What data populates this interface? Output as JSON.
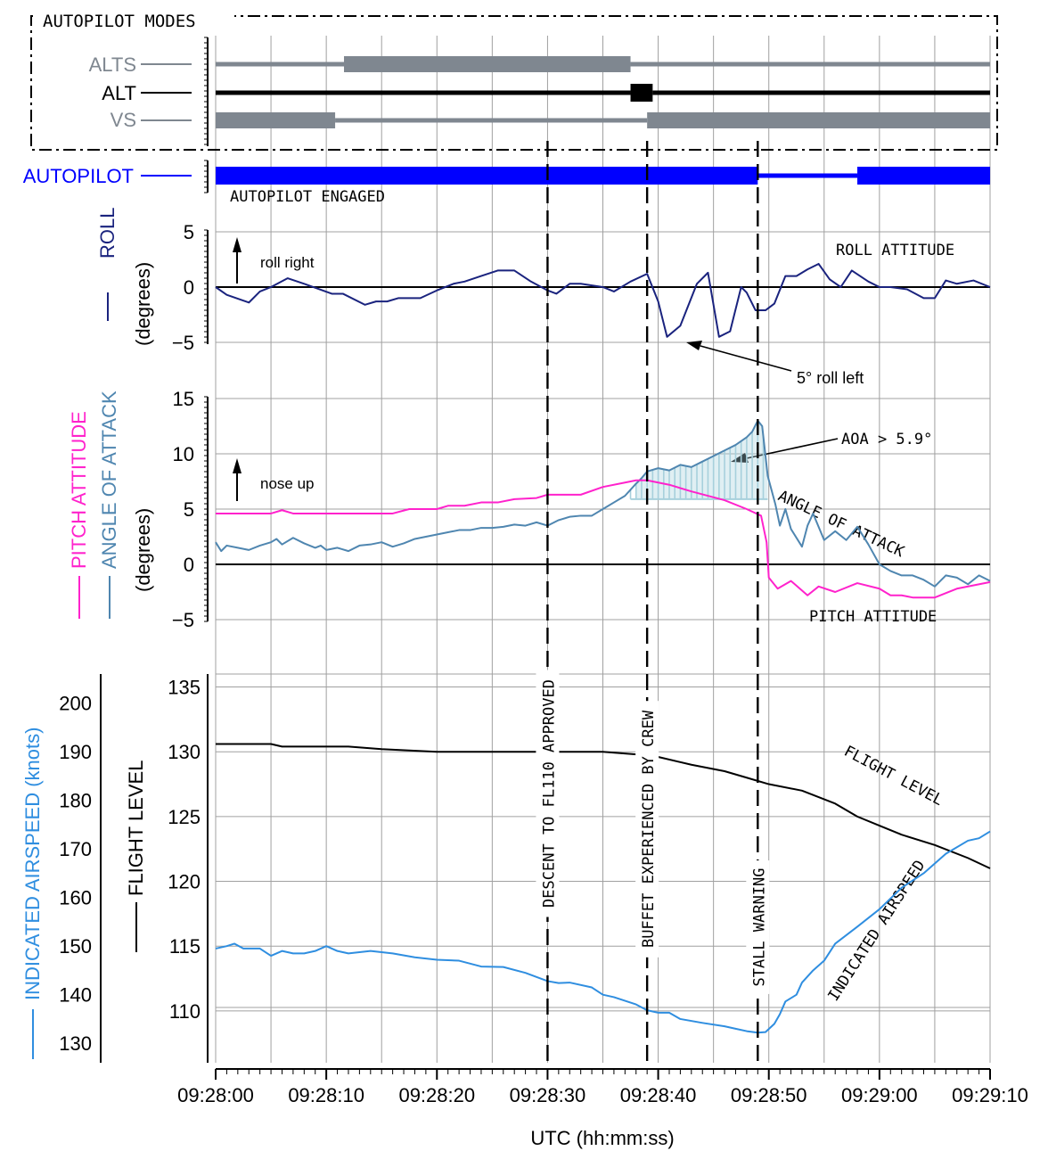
{
  "colors": {
    "modes": "#7f8790",
    "alt": "#000000",
    "autopilot": "#0000ff",
    "roll": "#1a237e",
    "pitch": "#ff22cc",
    "aoa": "#4f86b0",
    "aoa_fill": "#a7d0dc",
    "ias": "#2f8ee0",
    "fl": "#000000",
    "grid": "#a0a0a0"
  },
  "labels": {
    "modes_box": "AUTOPILOT MODES",
    "alts": "ALTS",
    "alt": "ALT",
    "vs": "VS",
    "autopilot": "AUTOPILOT",
    "autopilot_engaged": "AUTOPILOT ENGAGED",
    "roll_axis": "ROLL",
    "roll_unit": "(degrees)",
    "roll_right": "roll right",
    "roll_attitude": "ROLL ATTITUDE",
    "roll_annotation": "5° roll left",
    "pitch_axis": "PITCH ATTITUDE",
    "aoa_axis": "ANGLE OF ATTACK",
    "pitch_unit": "(degrees)",
    "nose_up": "nose up",
    "aoa_threshold": "AOA > 5.9°",
    "aoa_curve": "ANGLE OF ATTACK",
    "pitch_curve": "PITCH ATTITUDE",
    "ias_axis": "INDICATED AIRSPEED (knots)",
    "fl_axis": "FLIGHT LEVEL",
    "fl_curve": "FLIGHT LEVEL",
    "ias_curve": "INDICATED AIRSPEED",
    "event_descent": "DESCENT TO FL110 APPROVED",
    "event_buffet": "BUFFET EXPERIENCED BY CREW",
    "event_stall": "STALL WARNING",
    "x_axis": "UTC (hh:mm:ss)"
  },
  "chart_data": {
    "type": "line",
    "x_unit": "seconds after 09:28:00 UTC",
    "x_ticks": [
      "09:28:00",
      "09:28:10",
      "09:28:20",
      "09:28:30",
      "09:28:40",
      "09:28:50",
      "09:29:00",
      "09:29:10"
    ],
    "xlim": [
      0,
      70
    ],
    "events": [
      {
        "t": 30,
        "label": "DESCENT TO FL110 APPROVED"
      },
      {
        "t": 39,
        "label": "BUFFET EXPERIENCED BY CREW"
      },
      {
        "t": 49,
        "label": "STALL WARNING"
      }
    ],
    "discretes": {
      "ALTS": [
        [
          0,
          11.6,
          "off"
        ],
        [
          11.6,
          37.5,
          "on"
        ],
        [
          37.5,
          70,
          "off"
        ]
      ],
      "ALT": [
        [
          0,
          37.5,
          "off"
        ],
        [
          37.5,
          39.5,
          "on"
        ],
        [
          39.5,
          70,
          "off"
        ]
      ],
      "VS": [
        [
          0,
          10.8,
          "on"
        ],
        [
          10.8,
          39,
          "off"
        ],
        [
          39,
          70,
          "on"
        ]
      ],
      "AUTOPILOT": [
        [
          0,
          49,
          "on"
        ],
        [
          49,
          58,
          "off"
        ],
        [
          58,
          70,
          "on"
        ]
      ]
    },
    "roll": {
      "ylim": [
        -5,
        5
      ],
      "yticks": [
        -5,
        0,
        5
      ],
      "points": [
        [
          0,
          0
        ],
        [
          1,
          -0.7
        ],
        [
          3,
          -1.4
        ],
        [
          4,
          -0.4
        ],
        [
          5,
          0
        ],
        [
          6.5,
          0.8
        ],
        [
          8,
          0.3
        ],
        [
          10.5,
          -0.6
        ],
        [
          11.5,
          -0.6
        ],
        [
          13.5,
          -1.6
        ],
        [
          14.5,
          -1.3
        ],
        [
          15.5,
          -1.3
        ],
        [
          16.5,
          -1
        ],
        [
          18.5,
          -1
        ],
        [
          20,
          -0.3
        ],
        [
          21.5,
          0.3
        ],
        [
          22.5,
          0.5
        ],
        [
          24,
          1
        ],
        [
          25.5,
          1.5
        ],
        [
          27,
          1.5
        ],
        [
          28.5,
          0.5
        ],
        [
          30,
          -0.3
        ],
        [
          30.8,
          -0.6
        ],
        [
          32,
          0.3
        ],
        [
          33,
          0.3
        ],
        [
          35,
          0
        ],
        [
          36,
          -0.4
        ],
        [
          37.5,
          0.5
        ],
        [
          39,
          1.2
        ],
        [
          40,
          -1.3
        ],
        [
          40.8,
          -4.5
        ],
        [
          42,
          -3.5
        ],
        [
          43.5,
          0.3
        ],
        [
          44.5,
          1.3
        ],
        [
          45.5,
          -4.5
        ],
        [
          46.5,
          -4
        ],
        [
          47.5,
          0
        ],
        [
          48,
          -0.5
        ],
        [
          48.8,
          -2.1
        ],
        [
          49.7,
          -2.1
        ],
        [
          50.5,
          -1.5
        ],
        [
          51.5,
          1
        ],
        [
          52.5,
          1
        ],
        [
          53.5,
          1.6
        ],
        [
          54.5,
          2.1
        ],
        [
          55.5,
          0.7
        ],
        [
          56.5,
          0
        ],
        [
          57.5,
          1.5
        ],
        [
          59,
          0.5
        ],
        [
          60,
          0
        ],
        [
          61,
          0
        ],
        [
          62.5,
          -0.2
        ],
        [
          64,
          -1
        ],
        [
          65,
          -1
        ],
        [
          66,
          0.6
        ],
        [
          67,
          0.3
        ],
        [
          68.5,
          0.6
        ],
        [
          70,
          0
        ]
      ]
    },
    "pitch": {
      "ylim": [
        -5,
        15
      ],
      "yticks": [
        -5,
        0,
        5,
        10,
        15
      ],
      "points": [
        [
          0,
          4.6
        ],
        [
          5,
          4.6
        ],
        [
          6,
          4.9
        ],
        [
          7,
          4.6
        ],
        [
          16,
          4.6
        ],
        [
          17.5,
          5
        ],
        [
          20,
          5
        ],
        [
          21,
          5.3
        ],
        [
          22.5,
          5.3
        ],
        [
          24,
          5.6
        ],
        [
          25.5,
          5.6
        ],
        [
          27,
          5.9
        ],
        [
          29,
          6
        ],
        [
          30,
          6.3
        ],
        [
          33,
          6.3
        ],
        [
          35,
          7
        ],
        [
          37,
          7.4
        ],
        [
          38,
          7.6
        ],
        [
          39,
          7.6
        ],
        [
          41,
          7.2
        ],
        [
          43,
          6.6
        ],
        [
          46,
          5.8
        ],
        [
          48,
          5
        ],
        [
          49.3,
          4.4
        ],
        [
          49.8,
          2
        ],
        [
          50,
          -1.2
        ],
        [
          50.8,
          -2.2
        ],
        [
          52,
          -1.5
        ],
        [
          53.5,
          -2.8
        ],
        [
          54.5,
          -2
        ],
        [
          56,
          -2.5
        ],
        [
          58,
          -1.7
        ],
        [
          60,
          -2.2
        ],
        [
          61,
          -2.8
        ],
        [
          62,
          -2.8
        ],
        [
          63,
          -3
        ],
        [
          65,
          -3
        ],
        [
          67,
          -2.2
        ],
        [
          70,
          -1.6
        ]
      ]
    },
    "aoa": {
      "points": [
        [
          0,
          2
        ],
        [
          0.5,
          1.2
        ],
        [
          1,
          1.7
        ],
        [
          2,
          1.5
        ],
        [
          3,
          1.3
        ],
        [
          4,
          1.7
        ],
        [
          5,
          2
        ],
        [
          5.5,
          2.3
        ],
        [
          6,
          1.8
        ],
        [
          7,
          2.4
        ],
        [
          8,
          1.9
        ],
        [
          9,
          1.5
        ],
        [
          9.5,
          1.7
        ],
        [
          10,
          1.3
        ],
        [
          11,
          1.5
        ],
        [
          12,
          1.2
        ],
        [
          13,
          1.7
        ],
        [
          14,
          1.8
        ],
        [
          15,
          2
        ],
        [
          16,
          1.6
        ],
        [
          17,
          1.9
        ],
        [
          18,
          2.3
        ],
        [
          19,
          2.5
        ],
        [
          20,
          2.7
        ],
        [
          21,
          2.9
        ],
        [
          22,
          3.1
        ],
        [
          23,
          3.1
        ],
        [
          24,
          3.3
        ],
        [
          25,
          3.3
        ],
        [
          26,
          3.4
        ],
        [
          27,
          3.6
        ],
        [
          28,
          3.5
        ],
        [
          29,
          3.8
        ],
        [
          30,
          3.5
        ],
        [
          31,
          4
        ],
        [
          32,
          4.3
        ],
        [
          33,
          4.4
        ],
        [
          34,
          4.4
        ],
        [
          35,
          5
        ],
        [
          36,
          5.6
        ],
        [
          37,
          6.2
        ],
        [
          38,
          7.3
        ],
        [
          38.5,
          7.8
        ],
        [
          39,
          8.4
        ],
        [
          40,
          8.7
        ],
        [
          41,
          8.5
        ],
        [
          42,
          9
        ],
        [
          43,
          8.8
        ],
        [
          44,
          9.3
        ],
        [
          45,
          9.8
        ],
        [
          46,
          10.3
        ],
        [
          47,
          10.8
        ],
        [
          48,
          11.5
        ],
        [
          48.5,
          12
        ],
        [
          49,
          13
        ],
        [
          49.4,
          12.5
        ],
        [
          49.9,
          8
        ],
        [
          50.6,
          5.4
        ],
        [
          51,
          3.5
        ],
        [
          51.5,
          5
        ],
        [
          52,
          3.2
        ],
        [
          53,
          1.6
        ],
        [
          53.5,
          3.5
        ],
        [
          54,
          4.6
        ],
        [
          55,
          2.2
        ],
        [
          56,
          3
        ],
        [
          57,
          2.2
        ],
        [
          58,
          3.4
        ],
        [
          59,
          1.8
        ],
        [
          60,
          0
        ],
        [
          61,
          -0.6
        ],
        [
          62,
          -1
        ],
        [
          63,
          -1
        ],
        [
          64,
          -1.4
        ],
        [
          65,
          -2
        ],
        [
          66,
          -1
        ],
        [
          67,
          -1.2
        ],
        [
          68,
          -1.8
        ],
        [
          69,
          -1
        ],
        [
          70,
          -1.5
        ]
      ],
      "threshold": 5.9
    },
    "flight_level": {
      "ylim": [
        106,
        136
      ],
      "yticks": [
        110,
        115,
        120,
        125,
        130,
        135
      ],
      "points": [
        [
          0,
          130.6
        ],
        [
          5,
          130.6
        ],
        [
          6,
          130.4
        ],
        [
          12,
          130.4
        ],
        [
          15,
          130.2
        ],
        [
          20,
          130
        ],
        [
          30,
          130
        ],
        [
          35,
          130
        ],
        [
          38,
          129.8
        ],
        [
          40,
          129.6
        ],
        [
          43,
          129
        ],
        [
          46,
          128.5
        ],
        [
          48,
          128
        ],
        [
          50,
          127.5
        ],
        [
          53,
          127
        ],
        [
          56,
          126
        ],
        [
          58,
          125
        ],
        [
          60,
          124.3
        ],
        [
          62,
          123.6
        ],
        [
          65,
          122.8
        ],
        [
          68,
          121.8
        ],
        [
          70,
          121
        ]
      ]
    },
    "ias": {
      "ylim": [
        126,
        206
      ],
      "yticks": [
        130,
        140,
        150,
        160,
        170,
        180,
        190,
        200
      ],
      "points": [
        [
          0,
          149.5
        ],
        [
          1,
          150
        ],
        [
          1.7,
          150.5
        ],
        [
          2.5,
          149.5
        ],
        [
          4,
          149.5
        ],
        [
          5,
          148
        ],
        [
          6,
          149
        ],
        [
          7,
          148.5
        ],
        [
          8,
          148.5
        ],
        [
          9,
          149
        ],
        [
          10,
          150
        ],
        [
          11,
          149
        ],
        [
          12,
          148.5
        ],
        [
          14,
          149
        ],
        [
          16,
          148.5
        ],
        [
          18,
          147.7
        ],
        [
          20,
          147.2
        ],
        [
          22,
          147
        ],
        [
          24,
          145.8
        ],
        [
          26,
          145.7
        ],
        [
          28,
          144.5
        ],
        [
          30,
          142.8
        ],
        [
          31,
          142.4
        ],
        [
          32,
          142.5
        ],
        [
          34,
          141.5
        ],
        [
          35,
          140
        ],
        [
          36,
          139.5
        ],
        [
          38,
          138
        ],
        [
          39,
          136.8
        ],
        [
          40,
          136.3
        ],
        [
          41,
          136.3
        ],
        [
          42,
          135
        ],
        [
          44,
          134.2
        ],
        [
          46,
          133.5
        ],
        [
          47,
          133
        ],
        [
          48,
          132.5
        ],
        [
          49,
          132.2
        ],
        [
          49.7,
          132.3
        ],
        [
          50.5,
          134
        ],
        [
          51,
          136
        ],
        [
          51.5,
          138.6
        ],
        [
          52.5,
          140
        ],
        [
          53,
          142.5
        ],
        [
          54,
          145
        ],
        [
          55,
          147
        ],
        [
          56,
          150.5
        ],
        [
          58,
          154
        ],
        [
          60,
          157.6
        ],
        [
          62,
          162
        ],
        [
          64,
          165
        ],
        [
          66,
          169
        ],
        [
          68,
          171.7
        ],
        [
          69,
          172.2
        ],
        [
          70,
          173.6
        ]
      ]
    }
  }
}
